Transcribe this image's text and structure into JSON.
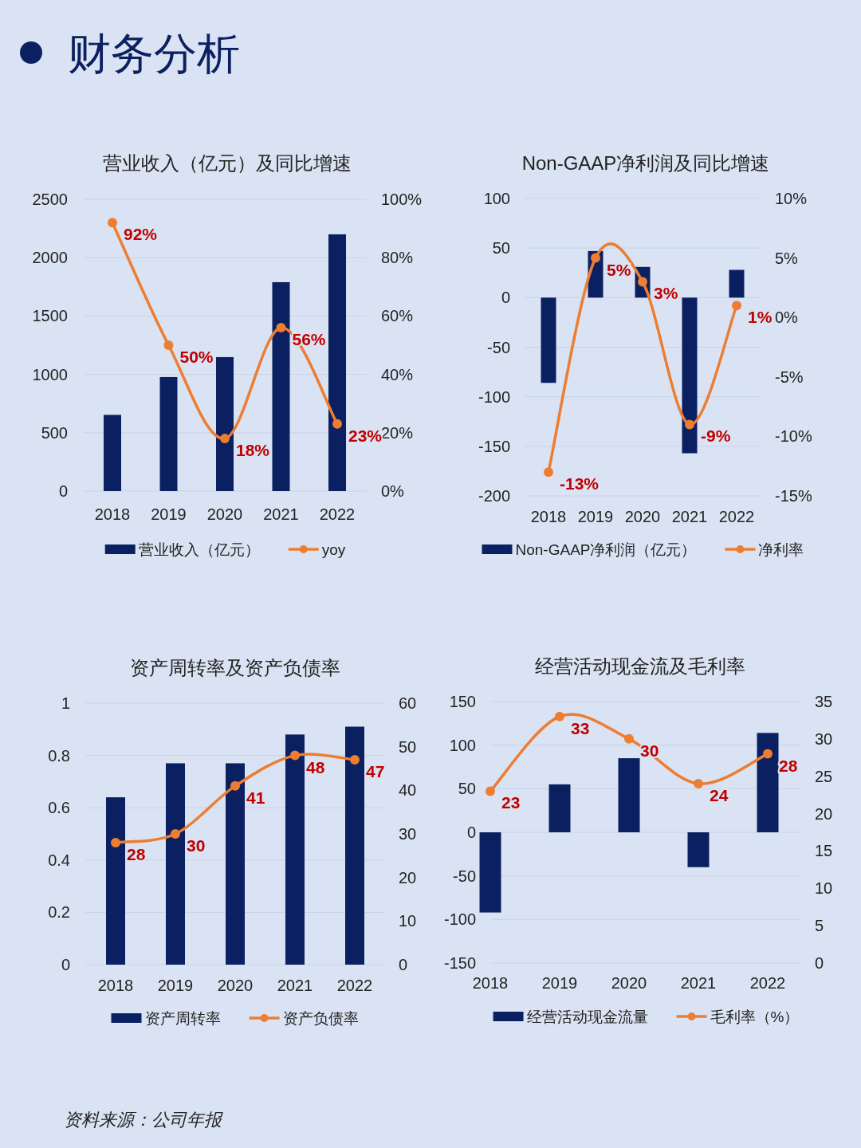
{
  "chart_data": [
    {
      "type": "bar",
      "title": "营业收入（亿元）及同比增速",
      "annotations": [
        "财务分析"
      ],
      "categories": [
        "2018",
        "2019",
        "2020",
        "2021",
        "2022"
      ],
      "series": [
        {
          "name": "营业收入（亿元）",
          "color": "#0b2060",
          "values": [
            653,
            977,
            1148,
            1790,
            2200
          ]
        },
        {
          "name": "yoy",
          "type": "line",
          "axis": "y2",
          "color": "#ed7d31",
          "values": [
            92,
            50,
            18,
            56,
            23
          ],
          "value_labels": [
            "92%",
            "50%",
            "18%",
            "56%",
            "23%"
          ]
        }
      ],
      "ylim": [
        0,
        2500
      ],
      "yticks": [
        0,
        500,
        1000,
        1500,
        2000,
        2500
      ],
      "y2lim": [
        0,
        100
      ],
      "y2ticks": [
        {
          "value": 0,
          "label": "0%"
        },
        {
          "value": 20,
          "label": "20%"
        },
        {
          "value": 40,
          "label": "40%"
        },
        {
          "value": 60,
          "label": "60%"
        },
        {
          "value": 80,
          "label": "80%"
        },
        {
          "value": 100,
          "label": "100%"
        }
      ],
      "grid": "y",
      "legend": "bottom",
      "marker": "circle",
      "line_style": "solid"
    },
    {
      "type": "bar",
      "title": "Non-GAAP净利润及同比增速",
      "categories": [
        "2018",
        "2019",
        "2020",
        "2021",
        "2022"
      ],
      "series": [
        {
          "name": "Non-GAAP净利润（亿元）",
          "color": "#0b2060",
          "values": [
            -86,
            47,
            31,
            -157,
            28
          ]
        },
        {
          "name": "净利率",
          "type": "line",
          "axis": "y2",
          "color": "#ed7d31",
          "values": [
            -13,
            5,
            3,
            -9,
            1
          ],
          "value_labels": [
            "-13%",
            "5%",
            "3%",
            "-9%",
            "1%"
          ]
        }
      ],
      "ylim": [
        -200,
        100
      ],
      "yticks": [
        -200,
        -150,
        -100,
        -50,
        0,
        50,
        100
      ],
      "y2lim": [
        -15,
        10
      ],
      "y2ticks": [
        {
          "value": -15,
          "label": "-15%"
        },
        {
          "value": -10,
          "label": "-10%"
        },
        {
          "value": -5,
          "label": "-5%"
        },
        {
          "value": 0,
          "label": "0%"
        },
        {
          "value": 5,
          "label": "5%"
        },
        {
          "value": 10,
          "label": "10%"
        }
      ],
      "grid": "y",
      "legend": "bottom",
      "marker": "circle",
      "line_style": "solid"
    },
    {
      "type": "bar",
      "title": "资产周转率及资产负债率",
      "categories": [
        "2018",
        "2019",
        "2020",
        "2021",
        "2022"
      ],
      "series": [
        {
          "name": "资产周转率",
          "color": "#0b2060",
          "values": [
            0.64,
            0.77,
            0.77,
            0.88,
            0.91
          ]
        },
        {
          "name": "资产负债率",
          "type": "line",
          "axis": "y2",
          "color": "#ed7d31",
          "values": [
            28,
            30,
            41,
            48,
            47
          ],
          "value_labels": [
            "28",
            "30",
            "41",
            "48",
            "47"
          ]
        }
      ],
      "ylim": [
        0,
        1
      ],
      "yticks": [
        0,
        0.2,
        0.4,
        0.6,
        0.8,
        1
      ],
      "y2lim": [
        0,
        60
      ],
      "y2ticks": [
        0,
        10,
        20,
        30,
        40,
        50,
        60
      ],
      "grid": "y",
      "legend": "bottom",
      "marker": "circle",
      "line_style": "solid"
    },
    {
      "type": "bar",
      "title": "经营活动现金流及毛利率",
      "annotations": [
        "资料来源：公司年报"
      ],
      "categories": [
        "2018",
        "2019",
        "2020",
        "2021",
        "2022"
      ],
      "series": [
        {
          "name": "经营活动现金流量",
          "color": "#0b2060",
          "values": [
            -92,
            55,
            85,
            -40,
            114
          ]
        },
        {
          "name": "毛利率（%）",
          "type": "line",
          "axis": "y2",
          "color": "#ed7d31",
          "values": [
            23,
            33,
            30,
            24,
            28
          ],
          "value_labels": [
            "23",
            "33",
            "30",
            "24",
            "28"
          ]
        }
      ],
      "ylim": [
        -150,
        150
      ],
      "yticks": [
        -150,
        -100,
        -50,
        0,
        50,
        100,
        150
      ],
      "y2lim": [
        0,
        35
      ],
      "y2ticks": [
        0,
        5,
        10,
        15,
        20,
        25,
        30,
        35
      ],
      "grid": "y",
      "legend": "bottom",
      "marker": "circle",
      "line_style": "solid"
    }
  ]
}
